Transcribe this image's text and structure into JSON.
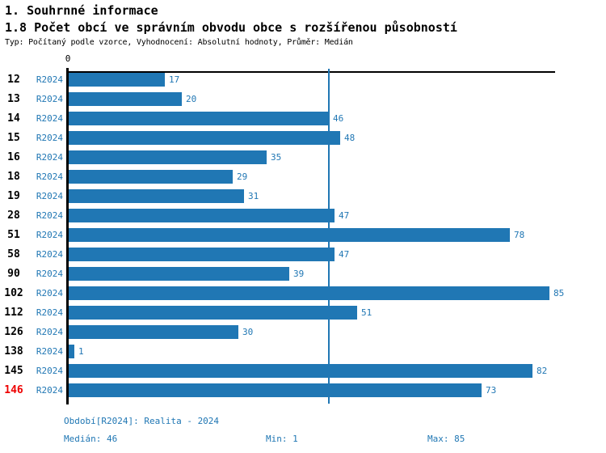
{
  "header": {
    "title": "1. Souhrnné informace",
    "subtitle": "1.8 Počet obcí ve správním obvodu obce s rozšířenou působností",
    "meta": "Typ: Počítaný podle vzorce, Vyhodnocení: Absolutní hodnoty, Průměr: Medián"
  },
  "chart_data": {
    "type": "bar",
    "orientation": "horizontal",
    "title": "1.8 Počet obcí ve správním obvodu obce s rozšířenou působností",
    "series_label": "R2024",
    "categories": [
      "12",
      "13",
      "14",
      "15",
      "16",
      "18",
      "19",
      "28",
      "51",
      "58",
      "90",
      "102",
      "112",
      "126",
      "138",
      "145",
      "146"
    ],
    "values": [
      17,
      20,
      46,
      48,
      35,
      29,
      31,
      47,
      78,
      47,
      39,
      85,
      51,
      30,
      1,
      82,
      73
    ],
    "highlighted_category": "146",
    "axis": {
      "x_origin_label": "0",
      "x_min": 0,
      "x_max": 85,
      "grid": false
    },
    "median_line_value": 46,
    "legend_position": "none",
    "stats": {
      "median": 46,
      "min": 1,
      "max": 85
    }
  },
  "footer": {
    "period": "Období[R2024]: Realita - 2024",
    "median": "Medián: 46",
    "min": "Min: 1",
    "max": "Max: 85"
  },
  "colors": {
    "bar": "#2077b4",
    "accent_text": "#2077b4",
    "highlight_category": "#ee0000",
    "axis": "#000000"
  }
}
